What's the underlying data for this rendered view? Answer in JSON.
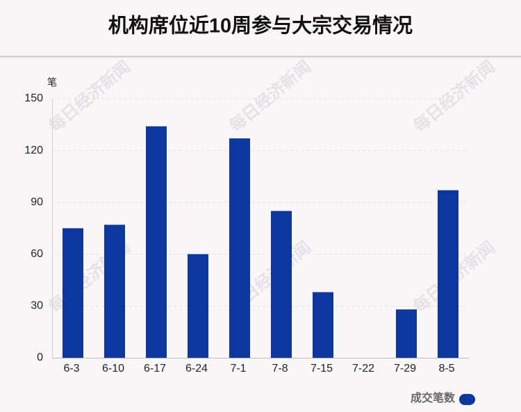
{
  "chart_data": {
    "type": "bar",
    "title": "机构席位近10周参与大宗交易情况",
    "y_unit": "笔",
    "watermark": "每日经济新闻",
    "categories": [
      "6-3",
      "6-10",
      "6-17",
      "6-24",
      "7-1",
      "7-8",
      "7-15",
      "7-22",
      "7-29",
      "8-5"
    ],
    "series": [
      {
        "name": "成交笔数",
        "color": "#0c36a0",
        "values": [
          75,
          77,
          134,
          60,
          127,
          85,
          38,
          0,
          28,
          97
        ]
      }
    ],
    "ylim": [
      0,
      150
    ],
    "yticks": [
      0,
      30,
      60,
      90,
      120,
      150
    ],
    "grid": true,
    "legend": "bottom-right"
  }
}
